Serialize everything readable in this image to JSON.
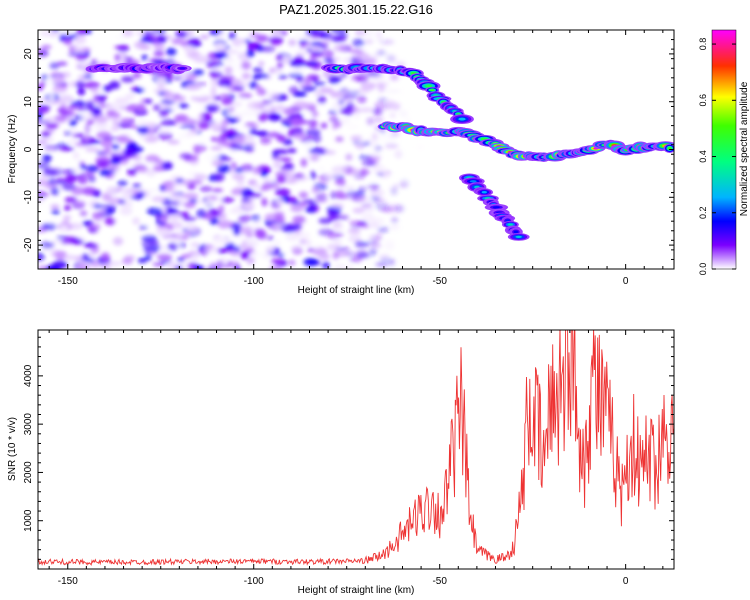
{
  "title": "PAZ1.2025.301.15.22.G16",
  "chart_data": [
    {
      "type": "heatmap",
      "name": "spectrogram",
      "xlabel": "Height of straight line (km)",
      "ylabel": "Frequency (Hz)",
      "xlim": [
        -158,
        13
      ],
      "ylim": [
        -25,
        25
      ],
      "x_ticks": [
        -150,
        -100,
        -50,
        0
      ],
      "y_ticks": [
        -20,
        -10,
        0,
        10,
        20
      ],
      "colorbar": {
        "label": "Normalized spectral amplitude",
        "range": [
          0,
          0.85
        ],
        "ticks": [
          0.0,
          0.2,
          0.4,
          0.6,
          0.8
        ],
        "colors": [
          "#ffffff",
          "#7b00ff",
          "#0000ff",
          "#00d2ff",
          "#00ff40",
          "#ffff00",
          "#ff3000",
          "#ff00ff"
        ]
      },
      "features": [
        {
          "name": "upper-branch",
          "points": [
            [
              -79,
              17
            ],
            [
              -70,
              16.8
            ],
            [
              -63,
              16.6
            ],
            [
              -57,
              16
            ],
            [
              -53,
              13
            ],
            [
              -48,
              9
            ],
            [
              -43,
              6
            ]
          ],
          "peak": 0.55
        },
        {
          "name": "main-signal",
          "points": [
            [
              -65,
              5
            ],
            [
              -60,
              4.7
            ],
            [
              -55,
              3.8
            ],
            [
              -50,
              3.5
            ],
            [
              -45,
              3.8
            ],
            [
              -40,
              2.5
            ],
            [
              -35,
              1.0
            ],
            [
              -30,
              -1.0
            ],
            [
              -25,
              -1.5
            ],
            [
              -20,
              -1.5
            ],
            [
              -15,
              -0.8
            ],
            [
              -10,
              0.0
            ],
            [
              -5,
              1.0
            ],
            [
              0,
              0.0
            ],
            [
              5,
              0.5
            ],
            [
              13,
              0.5
            ]
          ],
          "peak": 0.85
        },
        {
          "name": "lower-branch",
          "points": [
            [
              -42,
              -6
            ],
            [
              -37,
              -10
            ],
            [
              -34,
              -13
            ],
            [
              -31,
              -16
            ],
            [
              -28,
              -19
            ]
          ],
          "peak": 0.35
        },
        {
          "name": "noise-line",
          "points": [
            [
              -143,
              17
            ],
            [
              -130,
              17
            ],
            [
              -118,
              17
            ]
          ],
          "peak": 0.25
        }
      ]
    },
    {
      "type": "line",
      "name": "snr",
      "xlabel": "Height of straight line (km)",
      "ylabel": "SNR (10 * v/v)",
      "xlim": [
        -158,
        13
      ],
      "ylim": [
        0,
        4950
      ],
      "x_ticks": [
        -150,
        -100,
        -50,
        0
      ],
      "y_ticks": [
        1000,
        2000,
        3000,
        4000
      ],
      "color": "#ee3333",
      "series": [
        {
          "name": "SNR",
          "x": [
            -158,
            -140,
            -120,
            -100,
            -85,
            -70,
            -65,
            -62,
            -58,
            -55,
            -52,
            -50,
            -48,
            -46,
            -44,
            -42,
            -40,
            -38,
            -35,
            -32,
            -30,
            -28,
            -26,
            -24,
            -22,
            -20,
            -18,
            -16,
            -15,
            -13,
            -11,
            -9,
            -7,
            -5,
            -3,
            -1,
            0,
            2,
            4,
            6,
            8,
            10,
            12,
            13
          ],
          "y": [
            150,
            140,
            150,
            160,
            150,
            170,
            300,
            550,
            900,
            1200,
            1400,
            1100,
            1600,
            2600,
            3300,
            1200,
            400,
            300,
            200,
            250,
            500,
            1500,
            3400,
            3000,
            2200,
            3500,
            3800,
            4200,
            4900,
            3200,
            2200,
            4000,
            3600,
            3000,
            2400,
            1500,
            2200,
            2600,
            2000,
            2400,
            2200,
            2700,
            3300,
            2300
          ]
        }
      ]
    }
  ]
}
